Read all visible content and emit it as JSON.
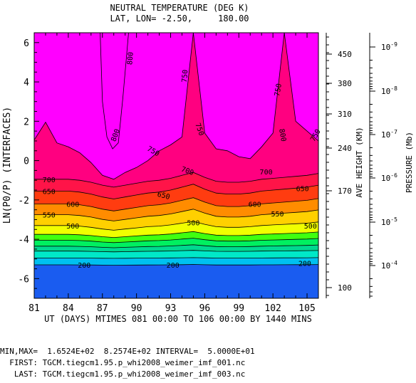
{
  "title": "NEUTRAL TEMPERATURE (DEG K)",
  "subtitle": "LAT, LON= -2.50,     180.00",
  "chart_data": {
    "type": "contour",
    "x": [
      81,
      82,
      83,
      84,
      85,
      86,
      87,
      88,
      89,
      90,
      91,
      92,
      93,
      94,
      95,
      96,
      97,
      98,
      99,
      100,
      101,
      102,
      103,
      104,
      105,
      106
    ],
    "xticks": [
      "81",
      "84",
      "87",
      "90",
      "93",
      "96",
      "99",
      "102",
      "105"
    ],
    "xlim": [
      81,
      106
    ],
    "xlabel": "UT (DAYS) MTIMES 081 00:00 TO 106 00:00 BY 1440 MINS",
    "ylabel": "LN(P0/P) (INTERFACES)",
    "yticks": [
      "6",
      "4",
      "2",
      "0",
      "-2",
      "-4",
      "-6"
    ],
    "ylim": [
      -7,
      6.5
    ],
    "right_axis_1": {
      "label": "AVE HEIGHT (KM)",
      "ticks": [
        "450",
        "380",
        "310",
        "240",
        "170",
        "100"
      ]
    },
    "right_axis_2": {
      "label": "PRESSURE (Mb)",
      "ticks": [
        {
          "mant": "10",
          "exp": "-9"
        },
        {
          "mant": "10",
          "exp": "-8"
        },
        {
          "mant": "10",
          "exp": "-7"
        },
        {
          "mant": "10",
          "exp": "-6"
        },
        {
          "mant": "10",
          "exp": "-5"
        },
        {
          "mant": "10",
          "exp": "-4"
        }
      ]
    },
    "contour_levels": [
      200,
      250,
      300,
      350,
      400,
      450,
      500,
      550,
      600,
      650,
      700,
      750,
      800
    ],
    "contour_labels": [
      "800",
      "800",
      "800",
      "750",
      "750",
      "750",
      "750",
      "750",
      "700",
      "700",
      "700",
      "650",
      "650",
      "650",
      "600",
      "600",
      "550",
      "550",
      "500",
      "500",
      "500",
      "200",
      "200",
      "200"
    ],
    "colors": {
      "lt250": "#1a5cf0",
      "lt300": "#00c0f0",
      "lt350": "#00e8c8",
      "lt400": "#00d890",
      "lt450": "#00f060",
      "lt500": "#40ff10",
      "lt550": "#f0ff00",
      "lt600": "#ffd000",
      "lt650": "#ff8c00",
      "lt700": "#ff3c10",
      "lt750": "#ff1448",
      "lt800": "#ff0080",
      "ge800": "#ff00ff"
    },
    "min": 165.24,
    "max": 825.74,
    "interval": 50
  },
  "footer": {
    "minmax": "MIN,MAX=  1.6524E+02  8.2574E+02 INTERVAL=  5.0000E+01",
    "first": "  FIRST: TGCM.tiegcm1.95.p_whi2008_weimer_imf_001.nc",
    "last": "   LAST: TGCM.tiegcm1.95.p_whi2008_weimer_imf_003.nc"
  }
}
